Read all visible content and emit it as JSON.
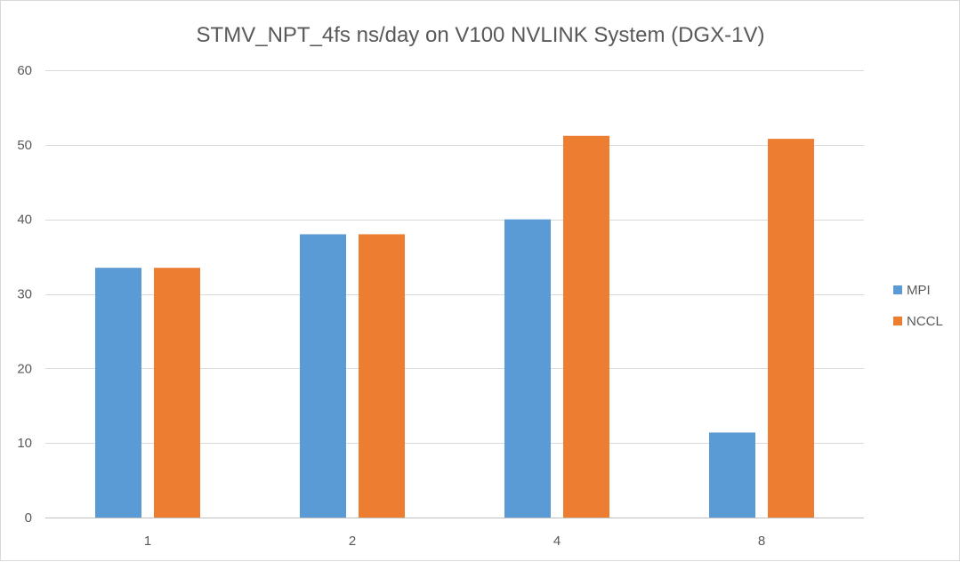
{
  "chart_data": {
    "type": "bar",
    "title": "STMV_NPT_4fs ns/day on V100 NVLINK System (DGX-1V)",
    "xlabel": "",
    "ylabel": "",
    "categories": [
      "1",
      "2",
      "4",
      "8"
    ],
    "series": [
      {
        "name": "MPI",
        "color": "#5b9bd5",
        "values": [
          33.5,
          38.0,
          40.0,
          11.4
        ]
      },
      {
        "name": "NCCL",
        "color": "#ed7d31",
        "values": [
          33.5,
          38.0,
          51.2,
          50.8
        ]
      }
    ],
    "ylim": [
      0,
      60
    ],
    "yticks": [
      0,
      10,
      20,
      30,
      40,
      50,
      60
    ],
    "grid": true,
    "legend_position": "right"
  }
}
